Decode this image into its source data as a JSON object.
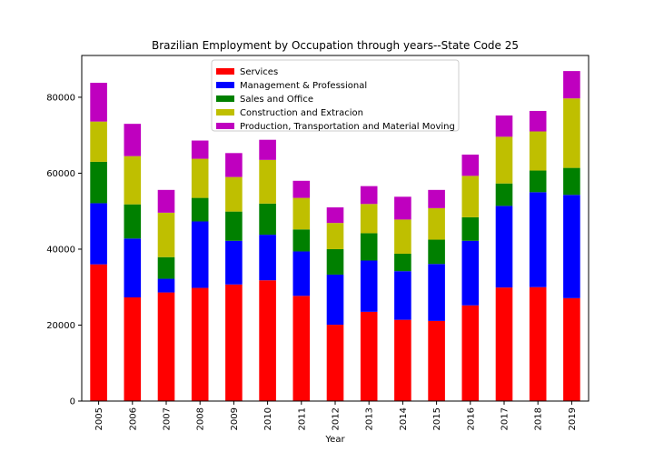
{
  "chart_data": {
    "type": "bar",
    "stacked": true,
    "title": "Brazilian Employment by Occupation through years--State Code 25",
    "xlabel": "Year",
    "ylabel": "",
    "ylim": [
      0,
      91000
    ],
    "yticks": [
      0,
      20000,
      40000,
      60000,
      80000
    ],
    "ytick_labels": [
      "0",
      "20000",
      "40000",
      "60000",
      "80000"
    ],
    "grid": false,
    "legend_position": "top-center",
    "categories": [
      "2005",
      "2006",
      "2007",
      "2008",
      "2009",
      "2010",
      "2011",
      "2012",
      "2013",
      "2014",
      "2015",
      "2016",
      "2017",
      "2018",
      "2019"
    ],
    "series": [
      {
        "name": "Services",
        "color": "#ff0000",
        "values": [
          36000,
          27300,
          28600,
          29800,
          30700,
          31800,
          27700,
          20100,
          23500,
          21400,
          21100,
          25200,
          29900,
          30000,
          27100
        ]
      },
      {
        "name": "Management & Professional",
        "color": "#0000ff",
        "values": [
          16100,
          15500,
          3600,
          17500,
          11500,
          12000,
          11700,
          13200,
          13500,
          12800,
          15000,
          17000,
          21500,
          25000,
          27200
        ]
      },
      {
        "name": "Sales and Office",
        "color": "#008000",
        "values": [
          10900,
          9000,
          5700,
          6200,
          7700,
          8200,
          5800,
          6700,
          7200,
          4600,
          6400,
          6200,
          5900,
          5700,
          7100
        ]
      },
      {
        "name": "Construction and Extracion",
        "color": "#bfbf00",
        "values": [
          10600,
          12700,
          11700,
          10300,
          9100,
          11500,
          8300,
          6900,
          7700,
          9000,
          8300,
          10900,
          12300,
          10300,
          18300
        ]
      },
      {
        "name": "Production, Transportation and Material Moving",
        "color": "#bf00bf",
        "values": [
          10200,
          8500,
          6000,
          4800,
          6300,
          5300,
          4500,
          4100,
          4700,
          6000,
          4800,
          5600,
          5600,
          5400,
          7200
        ]
      }
    ]
  }
}
